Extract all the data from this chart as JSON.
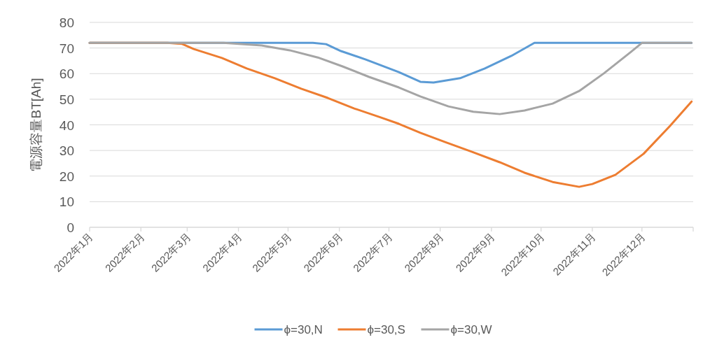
{
  "chart_data": {
    "type": "line",
    "ylabel": "電源容量BT[Ah]",
    "xlim": [
      "2022-01-01",
      "2023-01-01"
    ],
    "xticks": [
      {
        "value": "2022-01-01",
        "label": "2022年1月"
      },
      {
        "value": "2022-02-01",
        "label": "2022年2月"
      },
      {
        "value": "2022-03-01",
        "label": "2022年3月"
      },
      {
        "value": "2022-04-01",
        "label": "2022年4月"
      },
      {
        "value": "2022-05-01",
        "label": "2022年5月"
      },
      {
        "value": "2022-06-01",
        "label": "2022年6月"
      },
      {
        "value": "2022-07-01",
        "label": "2022年7月"
      },
      {
        "value": "2022-08-01",
        "label": "2022年8月"
      },
      {
        "value": "2022-09-01",
        "label": "2022年9月"
      },
      {
        "value": "2022-10-01",
        "label": "2022年10月"
      },
      {
        "value": "2022-11-01",
        "label": "2022年11月"
      },
      {
        "value": "2022-12-01",
        "label": "2022年12月"
      },
      {
        "value": "2023-01-01",
        "label": null
      }
    ],
    "ylim": [
      0,
      80
    ],
    "yticks": [
      0,
      10,
      20,
      30,
      40,
      50,
      60,
      70,
      80
    ],
    "grid": "y",
    "legend": "bottom",
    "series": [
      {
        "name": "ϕ=30,N",
        "color": "#5b9bd5",
        "x": [
          "2022-01-01",
          "2022-05-16",
          "2022-05-24",
          "2022-06-02",
          "2022-06-17",
          "2022-07-07",
          "2022-07-20",
          "2022-07-28",
          "2022-08-13",
          "2022-08-28",
          "2022-09-13",
          "2022-09-27",
          "2022-12-31"
        ],
        "values": [
          72,
          72,
          71.5,
          68.8,
          65.5,
          60.6,
          56.8,
          56.5,
          58.2,
          62,
          66.9,
          72,
          72
        ]
      },
      {
        "name": "ϕ=30,S",
        "color": "#ed7d31",
        "x": [
          "2022-01-01",
          "2022-02-17",
          "2022-02-26",
          "2022-03-05",
          "2022-03-22",
          "2022-04-06",
          "2022-04-23",
          "2022-05-09",
          "2022-05-25",
          "2022-06-10",
          "2022-06-26",
          "2022-07-07",
          "2022-07-20",
          "2022-08-04",
          "2022-08-20",
          "2022-09-06",
          "2022-09-21",
          "2022-10-08",
          "2022-10-24",
          "2022-11-01",
          "2022-11-15",
          "2022-12-02",
          "2022-12-18",
          "2022-12-31"
        ],
        "values": [
          72,
          72,
          71.6,
          69.6,
          66.1,
          62,
          58.2,
          54.1,
          50.5,
          46.4,
          42.9,
          40.4,
          36.9,
          33.3,
          29.5,
          25.4,
          21.3,
          17.7,
          15.8,
          16.9,
          20.5,
          28.7,
          39.6,
          49.1
        ]
      },
      {
        "name": "ϕ=30,W",
        "color": "#a5a5a5",
        "x": [
          "2022-01-01",
          "2022-03-23",
          "2022-04-15",
          "2022-05-02",
          "2022-05-19",
          "2022-06-03",
          "2022-06-19",
          "2022-07-07",
          "2022-07-20",
          "2022-08-06",
          "2022-08-21",
          "2022-09-06",
          "2022-09-21",
          "2022-10-08",
          "2022-10-24",
          "2022-11-08",
          "2022-11-24",
          "2022-12-01",
          "2022-12-31"
        ],
        "values": [
          72,
          72,
          71,
          69.1,
          66.3,
          62.8,
          58.7,
          54.6,
          51.1,
          47.2,
          45.1,
          44.2,
          45.6,
          48.3,
          53.2,
          60.1,
          68.3,
          72,
          72
        ]
      }
    ]
  }
}
